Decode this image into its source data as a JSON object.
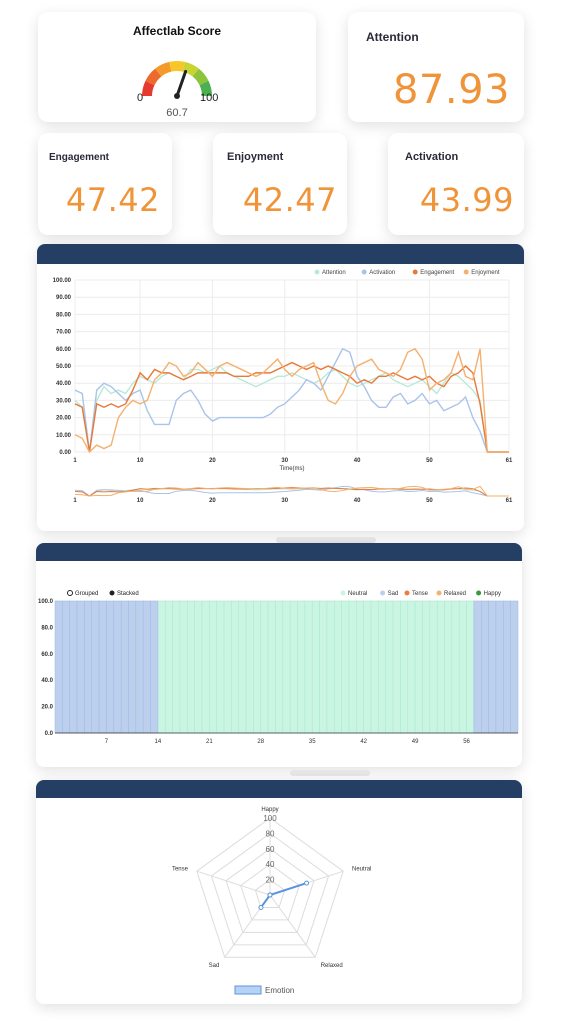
{
  "score": {
    "title": "Affectlab Score",
    "min": "0",
    "max": "100",
    "value": "60.7",
    "value_num": 60.7
  },
  "metrics": {
    "attention": {
      "title": "Attention",
      "value": "87.93"
    },
    "engagement": {
      "title": "Engagement",
      "value": "47.42"
    },
    "enjoyment": {
      "title": "Enjoyment",
      "value": "42.47"
    },
    "activation": {
      "title": "Activation",
      "value": "43.99"
    }
  },
  "colors": {
    "accent": "#f0943a",
    "header": "#243f63",
    "attention": "#b8ead8",
    "activation": "#a9c3ea",
    "engagement": "#e8793a",
    "enjoyment": "#f5b06e",
    "neutral": "#c9f5e2",
    "sad": "#bcd0ee",
    "tense": "#ec7d3a",
    "relaxed": "#f5b06e",
    "happy": "#3a9a3a",
    "emotion": "#5b93dd"
  },
  "chart_data": [
    {
      "type": "line",
      "xlabel": "Time(ms)",
      "ylabel": "",
      "ylim": [
        0,
        100
      ],
      "xlim": [
        1,
        61
      ],
      "yticks": [
        "100.00",
        "90.00",
        "80.00",
        "70.00",
        "60.00",
        "50.00",
        "40.00",
        "30.00",
        "20.00",
        "10.00",
        "0.00"
      ],
      "xticks": [
        "1",
        "10",
        "20",
        "30",
        "40",
        "50",
        "61"
      ],
      "grid": true,
      "legend_position": "top-right",
      "x": [
        1,
        2,
        3,
        4,
        5,
        6,
        7,
        8,
        9,
        10,
        11,
        12,
        13,
        14,
        15,
        16,
        17,
        18,
        19,
        20,
        21,
        22,
        23,
        24,
        25,
        26,
        27,
        28,
        29,
        30,
        31,
        32,
        33,
        34,
        35,
        36,
        37,
        38,
        39,
        40,
        41,
        42,
        43,
        44,
        45,
        46,
        47,
        48,
        49,
        50,
        51,
        52,
        53,
        54,
        55,
        56,
        57,
        58,
        59,
        60,
        61
      ],
      "series": [
        {
          "name": "Attention",
          "values": [
            30,
            26,
            0,
            30,
            38,
            34,
            36,
            34,
            40,
            44,
            42,
            40,
            44,
            46,
            44,
            42,
            48,
            48,
            46,
            48,
            50,
            46,
            44,
            42,
            40,
            38,
            40,
            42,
            44,
            44,
            46,
            44,
            42,
            40,
            42,
            46,
            48,
            44,
            40,
            38,
            40,
            42,
            44,
            46,
            42,
            40,
            38,
            40,
            42,
            38,
            34,
            40,
            46,
            44,
            40,
            36,
            30,
            0,
            0,
            0,
            0
          ]
        },
        {
          "name": "Activation",
          "values": [
            36,
            34,
            0,
            36,
            40,
            38,
            34,
            30,
            34,
            36,
            24,
            16,
            16,
            16,
            30,
            34,
            36,
            30,
            22,
            18,
            20,
            20,
            20,
            20,
            20,
            20,
            20,
            22,
            26,
            28,
            32,
            36,
            42,
            40,
            36,
            44,
            52,
            60,
            58,
            44,
            38,
            30,
            26,
            26,
            32,
            34,
            28,
            30,
            34,
            28,
            30,
            24,
            26,
            28,
            32,
            20,
            12,
            0,
            0,
            0,
            0
          ]
        },
        {
          "name": "Engagement",
          "values": [
            28,
            26,
            0,
            28,
            26,
            28,
            26,
            28,
            36,
            46,
            42,
            48,
            46,
            46,
            44,
            42,
            44,
            46,
            46,
            46,
            46,
            46,
            44,
            44,
            44,
            46,
            46,
            46,
            48,
            50,
            52,
            50,
            48,
            50,
            48,
            50,
            48,
            46,
            44,
            40,
            42,
            40,
            44,
            44,
            46,
            44,
            42,
            44,
            42,
            44,
            40,
            38,
            44,
            46,
            50,
            46,
            28,
            0,
            0,
            0,
            0
          ]
        },
        {
          "name": "Enjoyment",
          "values": [
            10,
            8,
            0,
            4,
            2,
            4,
            20,
            26,
            30,
            28,
            30,
            42,
            46,
            52,
            50,
            44,
            46,
            52,
            48,
            44,
            50,
            52,
            50,
            48,
            46,
            44,
            46,
            50,
            54,
            48,
            44,
            48,
            50,
            52,
            40,
            30,
            28,
            34,
            44,
            50,
            52,
            54,
            48,
            46,
            44,
            48,
            58,
            60,
            54,
            36,
            40,
            42,
            46,
            58,
            44,
            42,
            60,
            0,
            0,
            0,
            0
          ]
        }
      ]
    },
    {
      "type": "bar",
      "stacked": true,
      "ylim": [
        0,
        100
      ],
      "yticks": [
        "100.0",
        "80.0",
        "60.0",
        "40.0",
        "20.0",
        "0.0"
      ],
      "xticks": [
        "7",
        "14",
        "21",
        "28",
        "35",
        "42",
        "49",
        "56"
      ],
      "legend_position": "top-right",
      "mode_labels": [
        "Grouped",
        "Stacked"
      ],
      "categories_count": 63,
      "series": [
        {
          "name": "Neutral",
          "range": [
            14,
            56
          ],
          "value": 100
        },
        {
          "name": "Sad",
          "range": [
            0,
            13
          ],
          "value": 100
        },
        {
          "name": "Sad",
          "range": [
            57,
            62
          ],
          "value": 100
        },
        {
          "name": "Tense",
          "value": 0
        },
        {
          "name": "Relaxed",
          "value": 0
        },
        {
          "name": "Happy",
          "value": 0
        }
      ]
    },
    {
      "type": "radar",
      "axes": [
        "Happy",
        "Neutral",
        "Relaxed",
        "Sad",
        "Tense"
      ],
      "rticks": [
        "100",
        "80",
        "60",
        "40",
        "20"
      ],
      "rmax": 100,
      "series": [
        {
          "name": "Emotion",
          "values": [
            0,
            50,
            0,
            20,
            0
          ]
        }
      ]
    }
  ]
}
